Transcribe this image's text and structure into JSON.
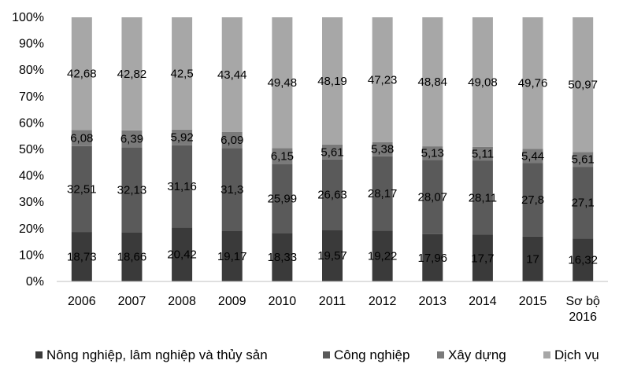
{
  "chart_data": {
    "type": "bar",
    "stacked": true,
    "percent_stacked": true,
    "categories": [
      "2006",
      "2007",
      "2008",
      "2009",
      "2010",
      "2011",
      "2012",
      "2013",
      "2014",
      "2015",
      [
        "Sơ bộ",
        "2016"
      ]
    ],
    "series": [
      {
        "name": "Nông nghiệp, lâm nghiệp và thủy sản",
        "color": "#3a3a3a",
        "values": [
          18.73,
          18.66,
          20.42,
          19.17,
          18.33,
          19.57,
          19.22,
          17.96,
          17.7,
          17,
          16.32
        ]
      },
      {
        "name": "Công nghiệp",
        "color": "#5a5a5a",
        "values": [
          32.51,
          32.13,
          31.16,
          31.3,
          25.99,
          26.63,
          28.17,
          28.07,
          28.11,
          27.8,
          27.1
        ]
      },
      {
        "name": "Xây dựng",
        "color": "#7a7a7a",
        "values": [
          6.08,
          6.39,
          5.92,
          6.09,
          6.15,
          5.61,
          5.38,
          5.13,
          5.11,
          5.44,
          5.61
        ]
      },
      {
        "name": "Dịch vụ",
        "color": "#a7a7a7",
        "values": [
          42.68,
          42.82,
          42.5,
          43.44,
          49.48,
          48.19,
          47.23,
          48.84,
          49.08,
          49.76,
          50.97
        ]
      }
    ],
    "data_labels": [
      [
        "18,73",
        "18,66",
        "20,42",
        "19,17",
        "18,33",
        "19,57",
        "19,22",
        "17,96",
        "17,7",
        "17",
        "16,32"
      ],
      [
        "32,51",
        "32,13",
        "31,16",
        "31,3",
        "25,99",
        "26,63",
        "28,17",
        "28,07",
        "28,11",
        "27,8",
        "27,1"
      ],
      [
        "6,08",
        "6,39",
        "5,92",
        "6,09",
        "6,15",
        "5,61",
        "5,38",
        "5,13",
        "5,11",
        "5,44",
        "5,61"
      ],
      [
        "42,68",
        "42,82",
        "42,5",
        "43,44",
        "49,48",
        "48,19",
        "47,23",
        "48,84",
        "49,08",
        "49,76",
        "50,97"
      ]
    ],
    "yticks": [
      0,
      10,
      20,
      30,
      40,
      50,
      60,
      70,
      80,
      90,
      100
    ],
    "ytick_labels": [
      "0%",
      "10%",
      "20%",
      "30%",
      "40%",
      "50%",
      "60%",
      "70%",
      "80%",
      "90%",
      "100%"
    ],
    "ylim": [
      0,
      100
    ],
    "grid": false,
    "legend_position": "bottom"
  }
}
